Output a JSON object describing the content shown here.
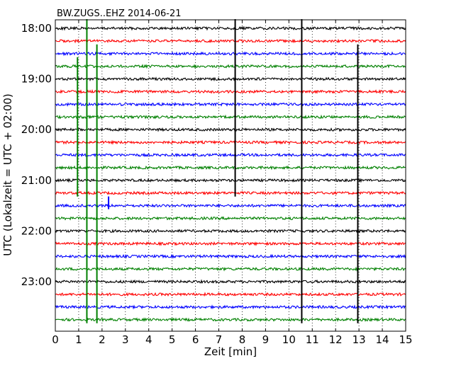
{
  "chart_data": {
    "type": "line",
    "title": "BW.ZUGS..EHZ 2014-06-21",
    "xlabel": "Zeit  [min]",
    "ylabel": "UTC (Lokalzeit = UTC + 02:00)",
    "xlim": [
      0,
      15
    ],
    "x_ticks": [
      "0",
      "1",
      "2",
      "3",
      "4",
      "5",
      "6",
      "7",
      "8",
      "9",
      "10",
      "11",
      "12",
      "13",
      "14",
      "15"
    ],
    "y_tick_labels": [
      "18:00",
      "19:00",
      "20:00",
      "21:00",
      "22:00",
      "23:00"
    ],
    "y_tick_rows": [
      0,
      4,
      8,
      12,
      16,
      20
    ],
    "grid": "vertical dotted",
    "row_colors": [
      "#000000",
      "#ff0000",
      "#0000ff",
      "#008000"
    ],
    "rows": [
      "18:00",
      "18:15",
      "18:30",
      "18:45",
      "19:00",
      "19:15",
      "19:30",
      "19:45",
      "20:00",
      "20:15",
      "20:30",
      "20:45",
      "21:00",
      "21:15",
      "21:30",
      "21:45",
      "22:00",
      "22:15",
      "22:30",
      "22:45",
      "23:00",
      "23:15",
      "23:30",
      "23:45"
    ],
    "events": [
      {
        "x": 0.95,
        "row_from": 3,
        "row_to": 13,
        "color": "#008000"
      },
      {
        "x": 1.35,
        "row_from": 0,
        "row_to": 23,
        "color": "#008000"
      },
      {
        "x": 1.78,
        "row_from": 2,
        "row_to": 23,
        "color": "#008000"
      },
      {
        "x": 2.28,
        "row_from": 14,
        "row_to": 14,
        "color": "#0000ff"
      },
      {
        "x": 7.7,
        "row_from": 0,
        "row_to": 13,
        "color": "#000000"
      },
      {
        "x": 10.55,
        "row_from": 0,
        "row_to": 23,
        "color": "#000000"
      },
      {
        "x": 12.95,
        "row_from": 2,
        "row_to": 23,
        "color": "#000000"
      }
    ]
  }
}
